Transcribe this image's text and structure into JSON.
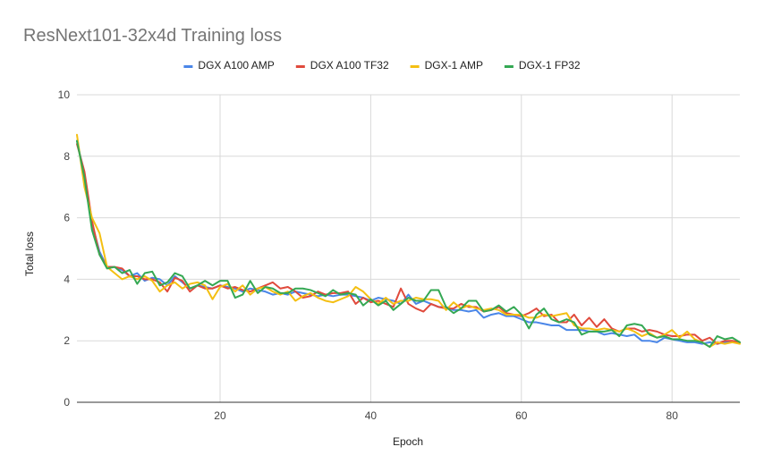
{
  "chart_data": {
    "type": "line",
    "title": "ResNext101-32x4d Training loss",
    "xlabel": "Epoch",
    "ylabel": "Total loss",
    "xlim": [
      1,
      89
    ],
    "ylim": [
      0,
      10
    ],
    "xticks": [
      20,
      40,
      60,
      80
    ],
    "yticks": [
      0,
      2,
      4,
      6,
      8,
      10
    ],
    "grid": true,
    "legend_position": "top",
    "series": [
      {
        "name": "DGX A100 AMP",
        "color": "#4a86e8",
        "values": [
          8.5,
          7.4,
          5.8,
          4.9,
          4.4,
          4.4,
          4.3,
          4.1,
          4.2,
          3.95,
          4.05,
          4.0,
          3.8,
          4.1,
          3.9,
          3.7,
          3.8,
          3.75,
          3.7,
          3.8,
          3.75,
          3.7,
          3.6,
          3.7,
          3.65,
          3.6,
          3.5,
          3.55,
          3.5,
          3.6,
          3.55,
          3.5,
          3.45,
          3.5,
          3.45,
          3.5,
          3.5,
          3.45,
          3.4,
          3.3,
          3.4,
          3.35,
          3.3,
          3.2,
          3.5,
          3.2,
          3.3,
          3.2,
          3.1,
          3.1,
          3.0,
          3.0,
          2.95,
          3.0,
          2.75,
          2.85,
          2.9,
          2.8,
          2.8,
          2.7,
          2.6,
          2.6,
          2.55,
          2.5,
          2.5,
          2.35,
          2.35,
          2.35,
          2.3,
          2.3,
          2.2,
          2.25,
          2.2,
          2.15,
          2.2,
          2.0,
          2.0,
          1.95,
          2.1,
          2.05,
          2.0,
          1.95,
          1.95,
          1.9,
          1.95,
          1.9,
          1.95,
          1.95,
          1.95
        ]
      },
      {
        "name": "DGX A100 TF32",
        "color": "#e04a3c",
        "values": [
          8.4,
          7.5,
          5.9,
          4.8,
          4.4,
          4.4,
          4.35,
          4.1,
          4.1,
          4.0,
          4.0,
          3.9,
          3.6,
          4.05,
          3.95,
          3.6,
          3.8,
          3.7,
          3.7,
          3.8,
          3.7,
          3.75,
          3.65,
          3.6,
          3.7,
          3.8,
          3.9,
          3.7,
          3.75,
          3.6,
          3.4,
          3.45,
          3.6,
          3.5,
          3.55,
          3.55,
          3.6,
          3.2,
          3.4,
          3.25,
          3.3,
          3.2,
          3.1,
          3.7,
          3.2,
          3.05,
          2.95,
          3.2,
          3.1,
          3.05,
          3.05,
          3.2,
          3.1,
          3.1,
          2.95,
          3.0,
          3.1,
          2.9,
          2.85,
          2.8,
          2.9,
          3.05,
          2.8,
          2.85,
          2.6,
          2.6,
          2.85,
          2.5,
          2.75,
          2.45,
          2.7,
          2.4,
          2.3,
          2.4,
          2.4,
          2.3,
          2.35,
          2.3,
          2.2,
          2.15,
          2.15,
          2.2,
          2.2,
          2.0,
          2.1,
          1.9,
          2.0,
          2.0,
          1.95
        ]
      },
      {
        "name": "DGX-1 AMP",
        "color": "#f4bf12",
        "values": [
          8.7,
          7.0,
          6.0,
          5.5,
          4.4,
          4.2,
          4.0,
          4.1,
          4.0,
          4.1,
          3.95,
          3.6,
          3.8,
          3.9,
          3.7,
          3.85,
          3.9,
          3.8,
          3.35,
          3.75,
          3.85,
          3.6,
          3.8,
          3.5,
          3.7,
          3.75,
          3.6,
          3.5,
          3.6,
          3.3,
          3.45,
          3.55,
          3.4,
          3.3,
          3.25,
          3.35,
          3.45,
          3.75,
          3.6,
          3.35,
          3.2,
          3.4,
          3.2,
          3.3,
          3.3,
          3.4,
          3.35,
          3.35,
          3.3,
          3.0,
          3.25,
          3.05,
          3.15,
          3.05,
          3.0,
          3.05,
          3.0,
          2.85,
          2.85,
          2.85,
          2.75,
          2.75,
          2.85,
          2.8,
          2.85,
          2.9,
          2.5,
          2.4,
          2.4,
          2.35,
          2.4,
          2.35,
          2.3,
          2.4,
          2.3,
          2.15,
          2.25,
          2.1,
          2.2,
          2.35,
          2.1,
          2.3,
          2.05,
          1.95,
          1.8,
          1.95,
          1.9,
          1.95,
          1.9
        ]
      },
      {
        "name": "DGX-1 FP32",
        "color": "#34a853",
        "values": [
          8.5,
          7.3,
          5.6,
          4.8,
          4.35,
          4.4,
          4.2,
          4.3,
          3.85,
          4.2,
          4.25,
          3.8,
          3.9,
          4.2,
          4.1,
          3.7,
          3.8,
          3.95,
          3.8,
          3.95,
          3.95,
          3.4,
          3.5,
          3.95,
          3.55,
          3.75,
          3.7,
          3.55,
          3.55,
          3.7,
          3.7,
          3.65,
          3.55,
          3.45,
          3.65,
          3.5,
          3.55,
          3.5,
          3.15,
          3.35,
          3.15,
          3.3,
          3.0,
          3.2,
          3.4,
          3.3,
          3.3,
          3.65,
          3.65,
          3.1,
          2.9,
          3.05,
          3.3,
          3.3,
          2.95,
          3.0,
          3.15,
          2.95,
          3.1,
          2.85,
          2.4,
          2.85,
          3.05,
          2.7,
          2.6,
          2.7,
          2.6,
          2.2,
          2.3,
          2.3,
          2.3,
          2.35,
          2.15,
          2.5,
          2.55,
          2.5,
          2.2,
          2.1,
          2.15,
          2.05,
          2.05,
          2.0,
          2.0,
          1.95,
          1.8,
          2.15,
          2.05,
          2.1,
          1.95
        ]
      }
    ]
  }
}
